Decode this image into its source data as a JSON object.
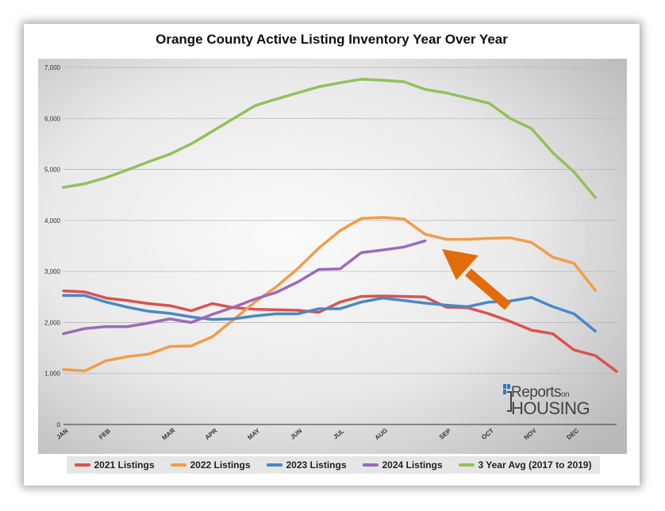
{
  "chart_data": {
    "type": "line",
    "title": "Orange County Active Listing Inventory Year Over Year",
    "xlabel": "",
    "ylabel": "",
    "ylim": [
      0,
      7000
    ],
    "yticks": [
      "0",
      "1,000",
      "2,000",
      "3,000",
      "4,000",
      "5,000",
      "6,000",
      "7,000"
    ],
    "yticks_values": [
      0,
      1000,
      2000,
      3000,
      4000,
      5000,
      6000,
      7000
    ],
    "x_weeks": 52,
    "month_labels": [
      {
        "label": "JAN",
        "week": 0
      },
      {
        "label": "FEB",
        "week": 4
      },
      {
        "label": "MAR",
        "week": 10
      },
      {
        "label": "APR",
        "week": 14
      },
      {
        "label": "MAY",
        "week": 18
      },
      {
        "label": "JUN",
        "week": 22
      },
      {
        "label": "JUL",
        "week": 26
      },
      {
        "label": "AUG",
        "week": 30
      },
      {
        "label": "SEP",
        "week": 36
      },
      {
        "label": "OCT",
        "week": 40
      },
      {
        "label": "NOV",
        "week": 44
      },
      {
        "label": "DEC",
        "week": 48
      }
    ],
    "grid": true,
    "legend_position": "bottom",
    "series": [
      {
        "name": "2021 Listings",
        "color": "#d9534f",
        "values": [
          2620,
          2600,
          2480,
          2430,
          2370,
          2330,
          2230,
          2370,
          2290,
          2260,
          2250,
          2240,
          2200,
          2400,
          2510,
          2520,
          2510,
          2500,
          2300,
          2290,
          2170,
          2020,
          1850,
          1780,
          1460,
          1350,
          1040
        ]
      },
      {
        "name": "2022 Listings",
        "color": "#f39c4a",
        "values": [
          1080,
          1050,
          1250,
          1330,
          1380,
          1530,
          1540,
          1720,
          2060,
          2400,
          2700,
          3050,
          3460,
          3800,
          4040,
          4060,
          4030,
          3730,
          3630,
          3630,
          3650,
          3660,
          3570,
          3280,
          3160,
          2630
        ]
      },
      {
        "name": "2023 Listings",
        "color": "#4a88c7",
        "values": [
          2530,
          2530,
          2400,
          2300,
          2220,
          2180,
          2110,
          2060,
          2070,
          2130,
          2170,
          2170,
          2270,
          2270,
          2400,
          2480,
          2430,
          2380,
          2340,
          2310,
          2400,
          2420,
          2490,
          2310,
          2170,
          1830
        ]
      },
      {
        "name": "2024 Listings",
        "color": "#9b6bb8",
        "values": [
          1780,
          1880,
          1920,
          1920,
          1990,
          2070,
          2000,
          2160,
          2300,
          2460,
          2590,
          2790,
          3040,
          3050,
          3370,
          3420,
          3480,
          3600
        ]
      },
      {
        "name": "3 Year Avg (2017 to 2019)",
        "color": "#92c15b",
        "values": [
          4650,
          4720,
          4840,
          4990,
          5150,
          5300,
          5500,
          5750,
          6000,
          6250,
          6380,
          6500,
          6620,
          6700,
          6770,
          6750,
          6720,
          6570,
          6500,
          6400,
          6300,
          6000,
          5800,
          5330,
          4950,
          4450
        ]
      }
    ],
    "annotations": [
      {
        "type": "arrow",
        "color": "#e36c0a",
        "points_to": "2024 Listings latest value"
      }
    ]
  },
  "logo": {
    "reports": "Reports",
    "on": "on",
    "housing": "HOUSING"
  }
}
